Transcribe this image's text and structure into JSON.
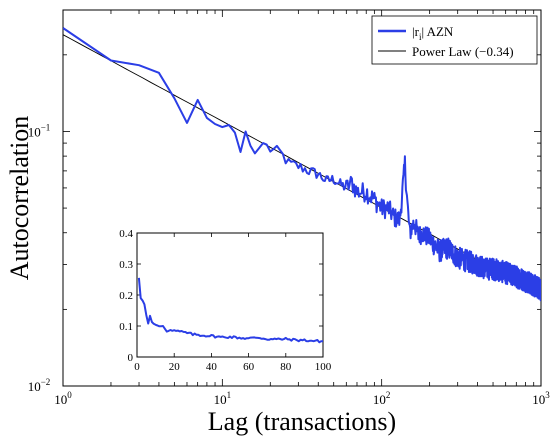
{
  "chart_data": [
    {
      "type": "line",
      "xlabel": "Lag (transactions)",
      "ylabel": "Autocorrelation",
      "xscale": "log",
      "yscale": "log",
      "xlim": [
        1,
        1000
      ],
      "ylim": [
        0.01,
        0.3
      ],
      "x_ticks": [
        {
          "base": "10",
          "exp": "0"
        },
        {
          "base": "10",
          "exp": "1"
        },
        {
          "base": "10",
          "exp": "2"
        },
        {
          "base": "10",
          "exp": "3"
        }
      ],
      "y_ticks": [
        {
          "base": "10",
          "exp": "−2"
        },
        {
          "base": "10",
          "exp": "−1"
        }
      ],
      "grid": false,
      "legend": {
        "placement": "top-right",
        "entries": [
          {
            "pre": "|r",
            "sub": "i",
            "post": "| AZN",
            "color": "#2b3ee6"
          },
          {
            "pre": "Power Law (−0.34)",
            "sub": "",
            "post": "",
            "color": "#000000"
          }
        ]
      },
      "series": [
        {
          "color": "#2b3ee6",
          "points": [
            [
              1,
              0.255
            ],
            [
              2,
              0.19
            ],
            [
              3,
              0.182
            ],
            [
              4,
              0.17
            ],
            [
              5,
              0.135
            ],
            [
              6,
              0.108
            ],
            [
              7,
              0.133
            ],
            [
              8,
              0.113
            ],
            [
              9,
              0.107
            ],
            [
              10,
              0.104
            ],
            [
              11,
              0.106
            ],
            [
              12,
              0.099
            ],
            [
              13,
              0.083
            ],
            [
              14,
              0.1
            ],
            [
              15,
              0.088
            ],
            [
              16,
              0.082
            ],
            [
              18,
              0.09
            ],
            [
              20,
              0.085
            ],
            [
              23,
              0.083
            ],
            [
              26,
              0.075
            ],
            [
              30,
              0.073
            ],
            [
              35,
              0.07
            ],
            [
              40,
              0.068
            ],
            [
              45,
              0.064
            ],
            [
              50,
              0.065
            ],
            [
              55,
              0.062
            ],
            [
              60,
              0.06
            ],
            [
              65,
              0.063
            ],
            [
              70,
              0.058
            ],
            [
              80,
              0.058
            ],
            [
              90,
              0.054
            ],
            [
              100,
              0.05
            ],
            [
              110,
              0.05
            ],
            [
              120,
              0.046
            ],
            [
              130,
              0.045
            ],
            [
              140,
              0.075
            ],
            [
              145,
              0.052
            ],
            [
              150,
              0.04
            ],
            [
              160,
              0.044
            ],
            [
              170,
              0.039
            ],
            [
              180,
              0.04
            ],
            [
              200,
              0.038
            ],
            [
              230,
              0.034
            ],
            [
              260,
              0.035
            ],
            [
              300,
              0.032
            ],
            [
              350,
              0.031
            ],
            [
              400,
              0.03
            ],
            [
              450,
              0.029
            ],
            [
              500,
              0.029
            ],
            [
              600,
              0.028
            ],
            [
              700,
              0.027
            ],
            [
              800,
              0.026
            ],
            [
              900,
              0.025
            ],
            [
              1000,
              0.024
            ]
          ]
        },
        {
          "color": "#000000",
          "amplitude": 0.24,
          "exponent": -0.34,
          "x_range": [
            1,
            1000
          ]
        }
      ]
    },
    {
      "type": "line",
      "placement": "inset",
      "xlim": [
        0,
        100
      ],
      "ylim": [
        0,
        0.4
      ],
      "x_ticks": [
        "0",
        "20",
        "40",
        "60",
        "80",
        "100"
      ],
      "y_ticks": [
        "0",
        "0.1",
        "0.2",
        "0.3",
        "0.4"
      ],
      "series": [
        {
          "color": "#2b3ee6",
          "points": [
            [
              1,
              0.255
            ],
            [
              2,
              0.19
            ],
            [
              3,
              0.182
            ],
            [
              4,
              0.17
            ],
            [
              5,
              0.135
            ],
            [
              6,
              0.108
            ],
            [
              7,
              0.133
            ],
            [
              8,
              0.113
            ],
            [
              9,
              0.107
            ],
            [
              10,
              0.104
            ],
            [
              12,
              0.099
            ],
            [
              14,
              0.1
            ],
            [
              16,
              0.082
            ],
            [
              18,
              0.09
            ],
            [
              20,
              0.085
            ],
            [
              25,
              0.08
            ],
            [
              30,
              0.073
            ],
            [
              35,
              0.07
            ],
            [
              40,
              0.068
            ],
            [
              45,
              0.064
            ],
            [
              50,
              0.065
            ],
            [
              55,
              0.062
            ],
            [
              60,
              0.06
            ],
            [
              65,
              0.063
            ],
            [
              70,
              0.058
            ],
            [
              75,
              0.057
            ],
            [
              80,
              0.058
            ],
            [
              85,
              0.055
            ],
            [
              90,
              0.054
            ],
            [
              95,
              0.052
            ],
            [
              100,
              0.05
            ]
          ]
        }
      ]
    }
  ]
}
